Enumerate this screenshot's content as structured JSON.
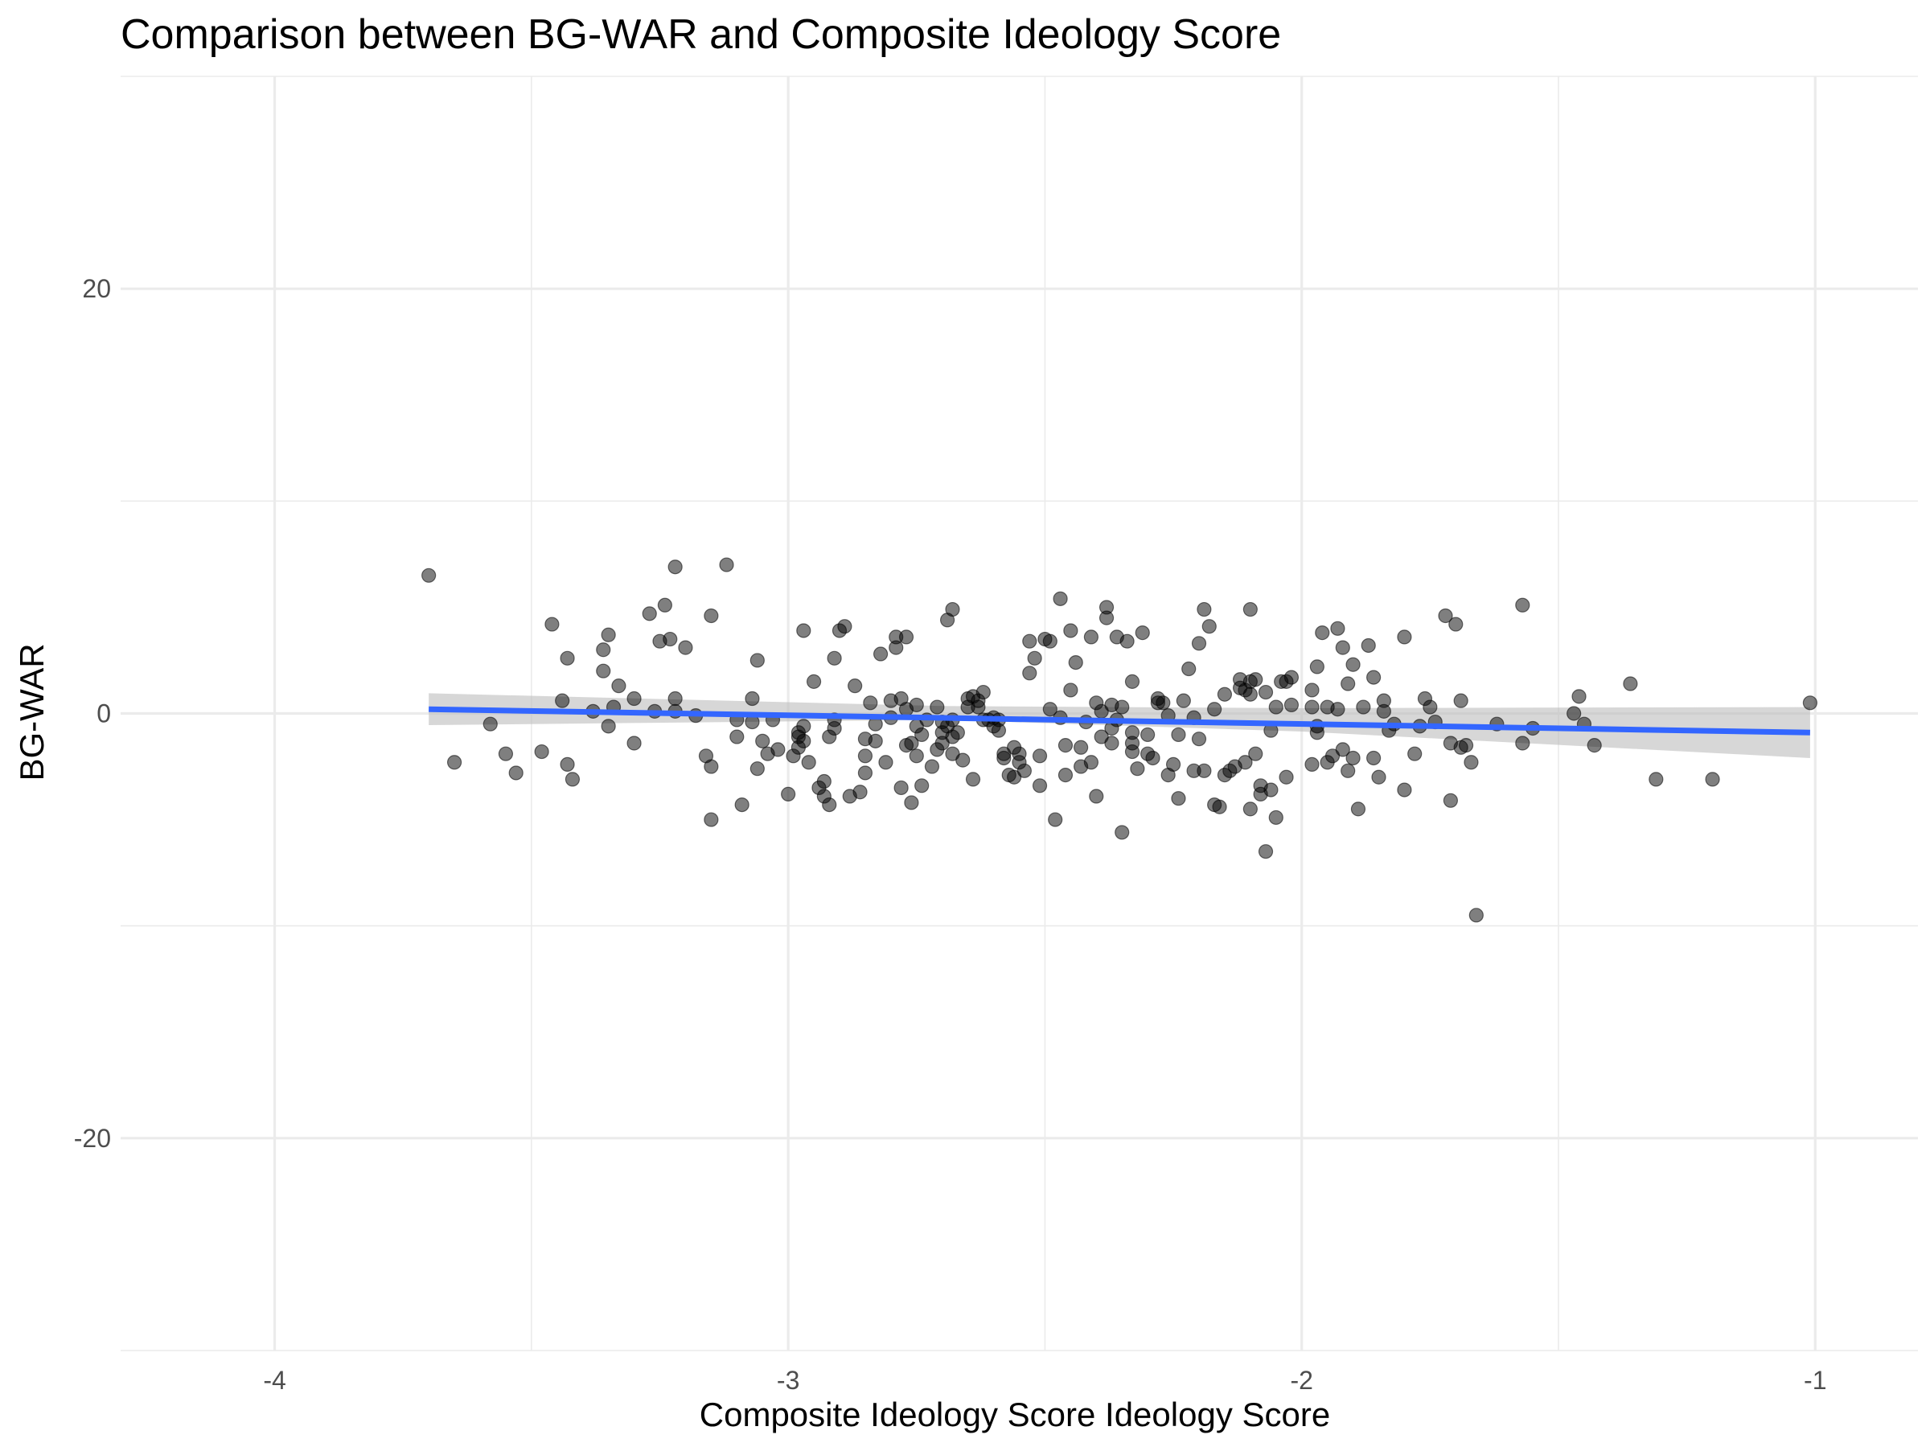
{
  "chart_data": {
    "type": "scatter",
    "title": "Comparison between BG-WAR and Composite Ideology Score",
    "xlabel": "Composite Ideology Score Ideology Score",
    "ylabel": "BG-WAR",
    "xlim": [
      -4.3,
      -0.8
    ],
    "ylim": [
      -30,
      30
    ],
    "x_ticks": [
      -4,
      -3,
      -2,
      -1
    ],
    "y_ticks": [
      -20,
      0,
      20
    ],
    "x_tick_labels": [
      "-4",
      "-3",
      "-2",
      "-1"
    ],
    "y_tick_labels": [
      "-20",
      "0",
      "20"
    ],
    "grid": true,
    "legend": "none",
    "colors": {
      "points": "#000000",
      "trend_line": "#3366ff",
      "confidence_band": "#bdbdbd",
      "grid": "#ebebeb"
    },
    "trend_line": {
      "x": [
        -3.7,
        -1.01
      ],
      "y": [
        0.2,
        -0.9
      ]
    },
    "confidence_band": {
      "x": [
        -3.7,
        -2.7,
        -2.0,
        -1.01
      ],
      "upper": [
        0.95,
        0.35,
        0.25,
        0.3
      ],
      "lower": [
        -0.55,
        -0.3,
        -0.85,
        -2.1
      ]
    },
    "points": [
      [
        -3.7,
        6.5
      ],
      [
        -3.65,
        -2.3
      ],
      [
        -3.58,
        -0.5
      ],
      [
        -3.55,
        -1.9
      ],
      [
        -3.53,
        -2.8
      ],
      [
        -3.48,
        -1.8
      ],
      [
        -3.46,
        4.2
      ],
      [
        -3.44,
        0.6
      ],
      [
        -3.43,
        2.6
      ],
      [
        -3.43,
        -2.4
      ],
      [
        -3.42,
        -3.1
      ],
      [
        -3.38,
        0.1
      ],
      [
        -3.36,
        2.0
      ],
      [
        -3.36,
        3.0
      ],
      [
        -3.35,
        -0.6
      ],
      [
        -3.35,
        3.7
      ],
      [
        -3.34,
        0.3
      ],
      [
        -3.33,
        1.3
      ],
      [
        -3.3,
        0.7
      ],
      [
        -3.3,
        -1.4
      ],
      [
        -3.27,
        4.7
      ],
      [
        -3.26,
        0.1
      ],
      [
        -3.25,
        3.4
      ],
      [
        -3.24,
        5.1
      ],
      [
        -3.23,
        3.5
      ],
      [
        -3.22,
        6.9
      ],
      [
        -3.22,
        0.1
      ],
      [
        -3.22,
        0.7
      ],
      [
        -3.2,
        3.1
      ],
      [
        -3.18,
        -0.1
      ],
      [
        -3.16,
        -2.0
      ],
      [
        -3.15,
        4.6
      ],
      [
        -3.15,
        -2.5
      ],
      [
        -3.15,
        -5.0
      ],
      [
        -3.12,
        7.0
      ],
      [
        -3.1,
        -0.3
      ],
      [
        -3.1,
        -1.1
      ],
      [
        -3.09,
        -4.3
      ],
      [
        -3.07,
        -0.4
      ],
      [
        -3.07,
        0.7
      ],
      [
        -3.06,
        2.5
      ],
      [
        -3.06,
        -2.6
      ],
      [
        -3.05,
        -1.3
      ],
      [
        -3.04,
        -1.9
      ],
      [
        -3.03,
        -0.3
      ],
      [
        -3.02,
        -1.7
      ],
      [
        -3.0,
        -3.8
      ],
      [
        -2.99,
        -2.0
      ],
      [
        -2.98,
        -1.1
      ],
      [
        -2.98,
        -0.9
      ],
      [
        -2.98,
        -1.6
      ],
      [
        -2.97,
        -0.6
      ],
      [
        -2.97,
        -1.3
      ],
      [
        -2.97,
        3.9
      ],
      [
        -2.96,
        -2.3
      ],
      [
        -2.95,
        1.5
      ],
      [
        -2.94,
        -3.5
      ],
      [
        -2.93,
        -3.2
      ],
      [
        -2.93,
        -3.9
      ],
      [
        -2.92,
        -4.3
      ],
      [
        -2.92,
        -1.1
      ],
      [
        -2.91,
        2.6
      ],
      [
        -2.91,
        -0.7
      ],
      [
        -2.91,
        -0.3
      ],
      [
        -2.9,
        3.9
      ],
      [
        -2.89,
        4.1
      ],
      [
        -2.88,
        -3.9
      ],
      [
        -2.87,
        1.3
      ],
      [
        -2.86,
        -3.7
      ],
      [
        -2.85,
        -1.2
      ],
      [
        -2.85,
        -2.0
      ],
      [
        -2.85,
        -2.8
      ],
      [
        -2.84,
        0.5
      ],
      [
        -2.83,
        -0.5
      ],
      [
        -2.83,
        -1.3
      ],
      [
        -2.82,
        2.8
      ],
      [
        -2.81,
        -2.3
      ],
      [
        -2.8,
        0.6
      ],
      [
        -2.8,
        -0.2
      ],
      [
        -2.79,
        3.1
      ],
      [
        -2.79,
        3.6
      ],
      [
        -2.78,
        -3.5
      ],
      [
        -2.78,
        0.7
      ],
      [
        -2.77,
        -1.5
      ],
      [
        -2.77,
        3.6
      ],
      [
        -2.77,
        0.2
      ],
      [
        -2.76,
        -1.4
      ],
      [
        -2.76,
        -4.2
      ],
      [
        -2.75,
        -2.0
      ],
      [
        -2.75,
        0.4
      ],
      [
        -2.75,
        -0.6
      ],
      [
        -2.74,
        -1.0
      ],
      [
        -2.74,
        -3.4
      ],
      [
        -2.73,
        -0.3
      ],
      [
        -2.72,
        -2.5
      ],
      [
        -2.71,
        0.3
      ],
      [
        -2.71,
        -1.7
      ],
      [
        -2.7,
        -0.9
      ],
      [
        -2.7,
        -0.4
      ],
      [
        -2.7,
        -1.4
      ],
      [
        -2.69,
        -0.6
      ],
      [
        -2.69,
        4.4
      ],
      [
        -2.68,
        4.9
      ],
      [
        -2.68,
        -1.1
      ],
      [
        -2.68,
        -0.3
      ],
      [
        -2.68,
        -1.9
      ],
      [
        -2.67,
        -0.9
      ],
      [
        -2.66,
        -2.2
      ],
      [
        -2.65,
        0.7
      ],
      [
        -2.65,
        0.3
      ],
      [
        -2.64,
        -3.1
      ],
      [
        -2.64,
        0.8
      ],
      [
        -2.63,
        0.3
      ],
      [
        -2.63,
        0.6
      ],
      [
        -2.62,
        1.0
      ],
      [
        -2.62,
        -0.3
      ],
      [
        -2.61,
        -0.3
      ],
      [
        -2.6,
        -0.2
      ],
      [
        -2.6,
        -0.6
      ],
      [
        -2.59,
        -0.3
      ],
      [
        -2.59,
        -0.8
      ],
      [
        -2.58,
        -2.1
      ],
      [
        -2.58,
        -1.9
      ],
      [
        -2.57,
        -2.9
      ],
      [
        -2.56,
        -3.0
      ],
      [
        -2.56,
        -1.6
      ],
      [
        -2.55,
        -2.3
      ],
      [
        -2.55,
        -1.9
      ],
      [
        -2.54,
        -2.7
      ],
      [
        -2.53,
        3.4
      ],
      [
        -2.53,
        1.9
      ],
      [
        -2.52,
        2.6
      ],
      [
        -2.51,
        -3.4
      ],
      [
        -2.51,
        -2.0
      ],
      [
        -2.5,
        3.5
      ],
      [
        -2.49,
        3.4
      ],
      [
        -2.49,
        0.2
      ],
      [
        -2.48,
        -5.0
      ],
      [
        -2.47,
        -0.2
      ],
      [
        -2.47,
        5.4
      ],
      [
        -2.46,
        -1.5
      ],
      [
        -2.46,
        -2.9
      ],
      [
        -2.45,
        3.9
      ],
      [
        -2.45,
        1.1
      ],
      [
        -2.44,
        2.4
      ],
      [
        -2.43,
        -1.6
      ],
      [
        -2.43,
        -2.5
      ],
      [
        -2.42,
        -0.4
      ],
      [
        -2.41,
        -2.3
      ],
      [
        -2.41,
        3.6
      ],
      [
        -2.4,
        -3.9
      ],
      [
        -2.4,
        0.5
      ],
      [
        -2.39,
        -1.1
      ],
      [
        -2.39,
        0.1
      ],
      [
        -2.38,
        5.0
      ],
      [
        -2.38,
        4.5
      ],
      [
        -2.37,
        -1.4
      ],
      [
        -2.37,
        -0.7
      ],
      [
        -2.37,
        0.4
      ],
      [
        -2.36,
        3.6
      ],
      [
        -2.36,
        -0.3
      ],
      [
        -2.35,
        0.3
      ],
      [
        -2.35,
        -5.6
      ],
      [
        -2.34,
        3.4
      ],
      [
        -2.33,
        -0.9
      ],
      [
        -2.33,
        1.5
      ],
      [
        -2.33,
        -1.8
      ],
      [
        -2.33,
        -1.4
      ],
      [
        -2.32,
        -2.6
      ],
      [
        -2.31,
        3.8
      ],
      [
        -2.3,
        -1.9
      ],
      [
        -2.3,
        -1.0
      ],
      [
        -2.29,
        -2.1
      ],
      [
        -2.28,
        0.7
      ],
      [
        -2.28,
        0.5
      ],
      [
        -2.27,
        0.5
      ],
      [
        -2.26,
        -2.9
      ],
      [
        -2.26,
        -0.1
      ],
      [
        -2.25,
        -2.4
      ],
      [
        -2.24,
        -1.0
      ],
      [
        -2.24,
        -4.0
      ],
      [
        -2.23,
        0.6
      ],
      [
        -2.22,
        2.1
      ],
      [
        -2.21,
        -0.2
      ],
      [
        -2.21,
        -2.7
      ],
      [
        -2.2,
        3.3
      ],
      [
        -2.2,
        -1.2
      ],
      [
        -2.19,
        4.9
      ],
      [
        -2.19,
        -2.7
      ],
      [
        -2.18,
        4.1
      ],
      [
        -2.17,
        0.2
      ],
      [
        -2.17,
        -4.3
      ],
      [
        -2.16,
        -4.4
      ],
      [
        -2.15,
        0.9
      ],
      [
        -2.15,
        -2.9
      ],
      [
        -2.14,
        -2.7
      ],
      [
        -2.13,
        -2.5
      ],
      [
        -2.12,
        1.6
      ],
      [
        -2.12,
        1.2
      ],
      [
        -2.11,
        1.1
      ],
      [
        -2.11,
        -2.3
      ],
      [
        -2.1,
        1.5
      ],
      [
        -2.1,
        -4.5
      ],
      [
        -2.1,
        4.9
      ],
      [
        -2.1,
        0.9
      ],
      [
        -2.09,
        -1.9
      ],
      [
        -2.09,
        1.6
      ],
      [
        -2.08,
        -3.4
      ],
      [
        -2.08,
        -3.8
      ],
      [
        -2.07,
        -6.5
      ],
      [
        -2.07,
        1.0
      ],
      [
        -2.06,
        -3.6
      ],
      [
        -2.06,
        -0.8
      ],
      [
        -2.05,
        0.3
      ],
      [
        -2.05,
        -4.9
      ],
      [
        -2.04,
        1.5
      ],
      [
        -2.03,
        -3.0
      ],
      [
        -2.03,
        1.5
      ],
      [
        -2.02,
        1.7
      ],
      [
        -2.02,
        0.4
      ],
      [
        -1.98,
        -2.4
      ],
      [
        -1.98,
        1.1
      ],
      [
        -1.98,
        0.3
      ],
      [
        -1.97,
        -0.6
      ],
      [
        -1.97,
        -0.9
      ],
      [
        -1.97,
        2.2
      ],
      [
        -1.96,
        3.8
      ],
      [
        -1.95,
        0.3
      ],
      [
        -1.95,
        -2.3
      ],
      [
        -1.94,
        -2.0
      ],
      [
        -1.93,
        4.0
      ],
      [
        -1.93,
        0.2
      ],
      [
        -1.92,
        -1.7
      ],
      [
        -1.92,
        3.1
      ],
      [
        -1.91,
        -2.7
      ],
      [
        -1.91,
        1.4
      ],
      [
        -1.9,
        2.3
      ],
      [
        -1.9,
        -2.1
      ],
      [
        -1.89,
        -4.5
      ],
      [
        -1.88,
        0.3
      ],
      [
        -1.87,
        3.2
      ],
      [
        -1.86,
        -2.1
      ],
      [
        -1.86,
        1.7
      ],
      [
        -1.85,
        -3.0
      ],
      [
        -1.84,
        0.6
      ],
      [
        -1.84,
        0.1
      ],
      [
        -1.83,
        -0.8
      ],
      [
        -1.82,
        -0.5
      ],
      [
        -1.8,
        3.6
      ],
      [
        -1.8,
        -3.6
      ],
      [
        -1.78,
        -1.9
      ],
      [
        -1.77,
        -0.6
      ],
      [
        -1.76,
        0.7
      ],
      [
        -1.75,
        0.3
      ],
      [
        -1.74,
        -0.4
      ],
      [
        -1.72,
        4.6
      ],
      [
        -1.71,
        -1.4
      ],
      [
        -1.71,
        -4.1
      ],
      [
        -1.7,
        4.2
      ],
      [
        -1.69,
        -1.6
      ],
      [
        -1.69,
        0.6
      ],
      [
        -1.68,
        -1.5
      ],
      [
        -1.67,
        -2.3
      ],
      [
        -1.66,
        -9.5
      ],
      [
        -1.62,
        -0.5
      ],
      [
        -1.57,
        5.1
      ],
      [
        -1.57,
        -1.4
      ],
      [
        -1.55,
        -0.7
      ],
      [
        -1.47,
        0.0
      ],
      [
        -1.46,
        0.8
      ],
      [
        -1.45,
        -0.5
      ],
      [
        -1.43,
        -1.5
      ],
      [
        -1.36,
        1.4
      ],
      [
        -1.31,
        -3.1
      ],
      [
        -1.2,
        -3.1
      ],
      [
        -1.01,
        0.5
      ]
    ]
  }
}
